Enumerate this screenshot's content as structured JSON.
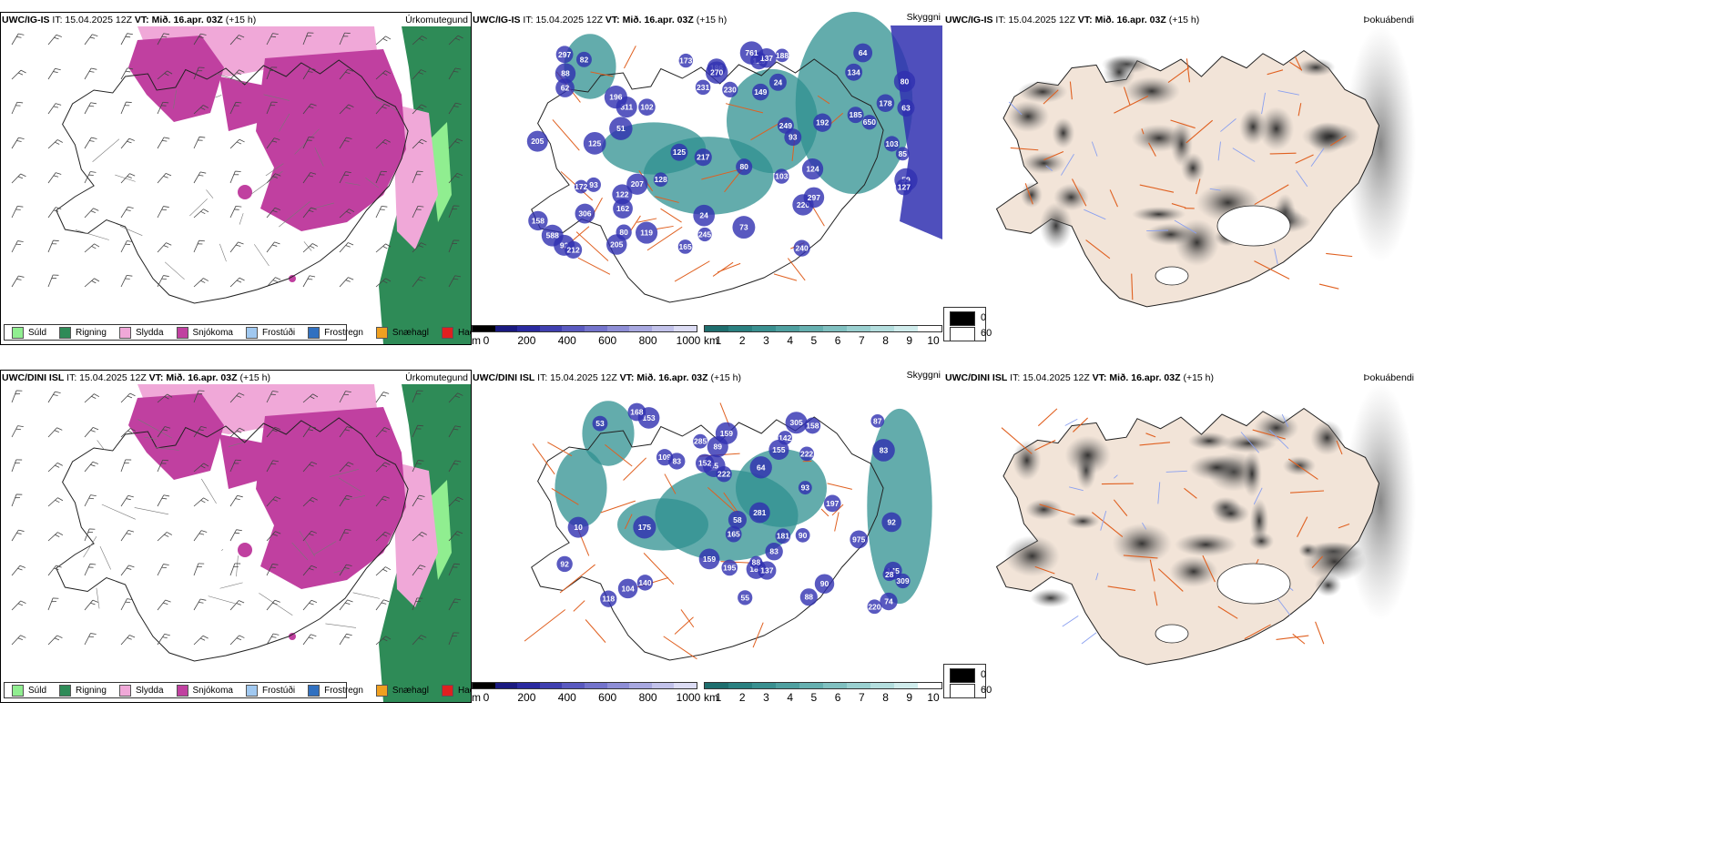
{
  "rows": [
    {
      "model": "UWC/IG-IS",
      "run_info": " IT: 15.04.2025 12Z ",
      "valid_prefix": "VT: ",
      "valid": "Mið. 16.apr. 03Z",
      "lead": " (+15 h)"
    },
    {
      "model": "UWC/DINI ISL",
      "run_info": " IT: 15.04.2025 12Z ",
      "valid_prefix": "VT: ",
      "valid": "Mið. 16.apr. 03Z",
      "lead": " (+15 h)"
    }
  ],
  "panels": {
    "precip": "Úrkomutegund",
    "cloud": "Skyggni",
    "fog": "Þokuábendi"
  },
  "precip_legend": [
    {
      "label": "Súld",
      "color": "#90ee90"
    },
    {
      "label": "Rigning",
      "color": "#2e8b57"
    },
    {
      "label": "Slydda",
      "color": "#f0a8d8"
    },
    {
      "label": "Snjókoma",
      "color": "#c040a0"
    },
    {
      "label": "Frostúði",
      "color": "#a0c8f0"
    },
    {
      "label": "Frostregn",
      "color": "#3070c0"
    },
    {
      "label": "Snæhagl",
      "color": "#f0a020"
    },
    {
      "label": "Haglél",
      "color": "#e02020"
    }
  ],
  "cloudbase_scale": {
    "unit": "m",
    "ticks": [
      "0",
      "200",
      "400",
      "600",
      "800",
      "1000"
    ],
    "colors": [
      "#000000",
      "#1a1a80",
      "#2a2aa0",
      "#4040b0",
      "#5a5ac0",
      "#7474cc",
      "#8e8ed6",
      "#a8a8e0",
      "#c2c2ea",
      "#dcdcf4"
    ]
  },
  "visibility_scale": {
    "unit": "km",
    "ticks": [
      "1",
      "2",
      "3",
      "4",
      "5",
      "6",
      "7",
      "8",
      "9",
      "10"
    ],
    "colors": [
      "#1e6e6e",
      "#2a8080",
      "#3a9090",
      "#4fa0a0",
      "#66b0b0",
      "#80c0c0",
      "#9ad0d0",
      "#b4dede",
      "#d0ecec",
      "#ffffff"
    ]
  },
  "fog_scale": {
    "high": "0",
    "low": "60"
  },
  "colors": {
    "snow": "#c040a0",
    "sleet": "#f0a8d8",
    "rain": "#2e8b57",
    "drizzle": "#90ee90",
    "land_fog": "#f2e4d8",
    "roads": "#e06020",
    "rivers": "#8aa0f0",
    "vis_teal": "#2f9090",
    "cloud_blue": "#3030b0"
  },
  "cloudbase_labels": {
    "row0": [
      "129",
      "82",
      "124",
      "134",
      "64",
      "122",
      "128",
      "149",
      "24",
      "119",
      "73",
      "24",
      "80",
      "63",
      "92",
      "103",
      "93",
      "85",
      "80",
      "102",
      "137",
      "178",
      "249",
      "162",
      "588",
      "230",
      "297",
      "306",
      "212",
      "165",
      "231",
      "188",
      "245",
      "311",
      "217",
      "186",
      "192",
      "220",
      "297",
      "207",
      "240",
      "270",
      "205",
      "93",
      "103",
      "205",
      "650",
      "173",
      "125",
      "761",
      "88",
      "62",
      "59",
      "80",
      "51",
      "125",
      "172",
      "185",
      "158",
      "127",
      "196"
    ],
    "row1": [
      "165",
      "55",
      "65",
      "305",
      "83",
      "90",
      "109",
      "74",
      "83",
      "93",
      "88",
      "83",
      "92",
      "104",
      "153",
      "181",
      "158",
      "145",
      "222",
      "159",
      "184",
      "195",
      "142",
      "152",
      "175",
      "281",
      "197",
      "140",
      "159",
      "975",
      "90",
      "155",
      "87",
      "309",
      "168",
      "118",
      "53",
      "137",
      "92",
      "88",
      "28",
      "285",
      "89",
      "222",
      "220",
      "10",
      "58",
      "64"
    ]
  }
}
